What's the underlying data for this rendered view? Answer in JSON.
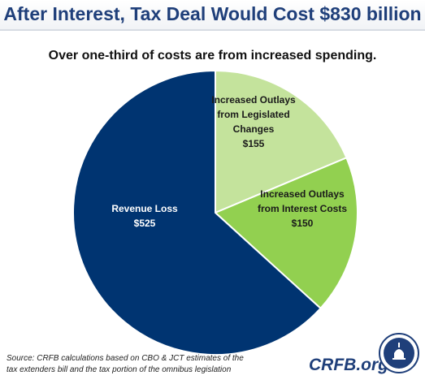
{
  "header": {
    "title": "After Interest, Tax Deal Would Cost $830 billion"
  },
  "subtitle": "Over one-third of costs are from increased spending.",
  "chart_data": {
    "type": "pie",
    "title": "After Interest, Tax Deal Would Cost $830 billion",
    "subtitle": "Over one-third of costs are from increased spending.",
    "slices": [
      {
        "label_lines": [
          "Increased Outlays",
          "from Legislated",
          "Changes"
        ],
        "value_label": "$155",
        "value": 155,
        "color": "#c4e39c"
      },
      {
        "label_lines": [
          "Increased Outlays",
          "from Interest Costs"
        ],
        "value_label": "$150",
        "value": 150,
        "color": "#92d050"
      },
      {
        "label_lines": [
          "Revenue Loss"
        ],
        "value_label": "$525",
        "value": 525,
        "color": "#003471"
      }
    ],
    "start": "12 o'clock",
    "direction": "clockwise",
    "total": 830
  },
  "footer": {
    "source_line1": "Source: CRFB calculations based on CBO & JCT estimates of the",
    "source_line2": "tax extenders bill and the tax portion of the omnibus legislation",
    "brand": "CRFB.org"
  }
}
